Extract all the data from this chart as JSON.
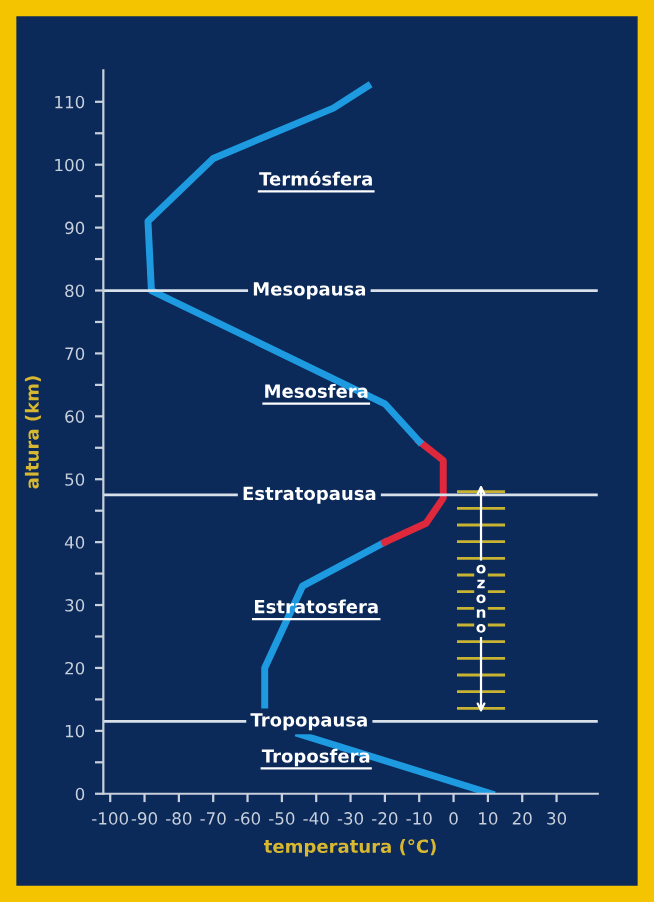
{
  "chart_data": {
    "type": "line",
    "xlabel": "temperatura (°C)",
    "ylabel": "altura (km)",
    "xlim": [
      -102,
      42
    ],
    "ylim": [
      0,
      115
    ],
    "xticks": [
      -100,
      -90,
      -80,
      -70,
      -60,
      -50,
      -40,
      -30,
      -20,
      -10,
      0,
      10,
      20,
      30
    ],
    "yticks": [
      0,
      {
        "value": 5,
        "label": null
      },
      10,
      {
        "value": 15,
        "label": null
      },
      20,
      {
        "value": 25,
        "label": null
      },
      30,
      {
        "value": 35,
        "label": null
      },
      40,
      {
        "value": 45,
        "label": null
      },
      50,
      {
        "value": 55,
        "label": null
      },
      60,
      {
        "value": 65,
        "label": null
      },
      70,
      {
        "value": 75,
        "label": null
      },
      80,
      {
        "value": 85,
        "label": null
      },
      90,
      {
        "value": 95,
        "label": null
      },
      100,
      {
        "value": 105,
        "label": null
      },
      110
    ],
    "grid": false,
    "legend": false,
    "series": [
      {
        "color": "#1e9be0",
        "x": [
          -45,
          11
        ],
        "values": [
          9.5,
          0
        ]
      },
      {
        "color": "#1e9be0",
        "x": [
          -55,
          -55,
          -44,
          -20
        ],
        "values": [
          13,
          20,
          33,
          40
        ]
      },
      {
        "color": "#e0283c",
        "x": [
          -20,
          -8,
          -3,
          -3,
          -10
        ],
        "values": [
          40,
          43,
          47,
          53,
          56
        ]
      },
      {
        "color": "#1e9be0",
        "x": [
          -10,
          -20,
          -88,
          -89,
          -70,
          -35,
          -25
        ],
        "values": [
          56,
          62,
          80,
          91,
          101,
          109,
          112.5
        ]
      }
    ],
    "bands": [
      {
        "axis": "y",
        "from": 12,
        "to": 50,
        "label": "ozono",
        "color": "#c8b432"
      }
    ],
    "ref_lines": [
      {
        "axis": "y",
        "value": 80,
        "label": "Mesopausa",
        "color": "#d8e0ea"
      },
      {
        "axis": "y",
        "value": 47.5,
        "label": "Estratopausa",
        "color": "#d8e0ea"
      },
      {
        "axis": "y",
        "value": 11.5,
        "label": "Tropopausa",
        "color": "#d8e0ea"
      }
    ],
    "annotations": [
      "Termósfera",
      "Mesosfera",
      "Estratosfera",
      "Troposfera"
    ]
  }
}
